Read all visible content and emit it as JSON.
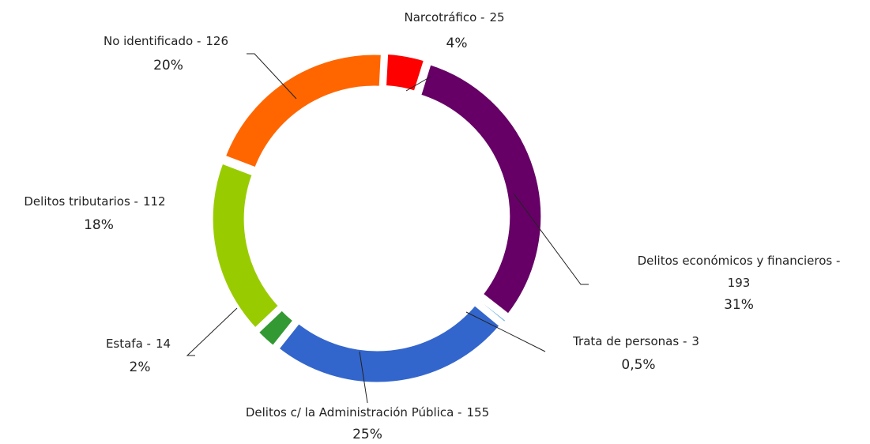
{
  "chart_data": {
    "type": "donut",
    "categories": [
      "Narcotráfico -",
      "Delitos económicos y financieros -",
      "Trata de personas -",
      "Delitos c/ la Administración Pública -",
      "Estafa -",
      "Delitos tributarios -",
      "No identificado -"
    ],
    "values": [
      25,
      193,
      3,
      155,
      14,
      112,
      126
    ],
    "shares": [
      4,
      31,
      0.5,
      25,
      2,
      18,
      20
    ],
    "share_labels": [
      "4%",
      "31%",
      "0,5%",
      "25%",
      "2%",
      "18%",
      "20%"
    ],
    "colors": [
      "#ff0000",
      "#660066",
      "#5ba6e0",
      "#3366cc",
      "#339933",
      "#99cc00",
      "#ff6600"
    ]
  }
}
